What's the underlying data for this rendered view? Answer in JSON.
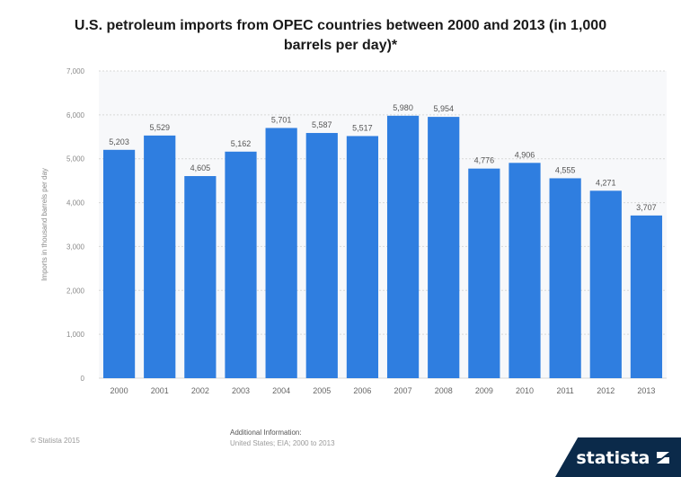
{
  "chart_data": {
    "type": "bar",
    "title_line1": "U.S. petroleum imports from OPEC countries between 2000 and 2013 (in 1,000",
    "title_line2": "barrels per day)*",
    "ylabel": "Imports in thousand barrels per day",
    "xlabel": "",
    "categories": [
      "2000",
      "2001",
      "2002",
      "2003",
      "2004",
      "2005",
      "2006",
      "2007",
      "2008",
      "2009",
      "2010",
      "2011",
      "2012",
      "2013"
    ],
    "values": [
      5203,
      5529,
      4605,
      5162,
      5701,
      5587,
      5517,
      5980,
      5954,
      4776,
      4906,
      4555,
      4271,
      3707
    ],
    "value_labels": [
      "5,203",
      "5,529",
      "4,605",
      "5,162",
      "5,701",
      "5,587",
      "5,517",
      "5,980",
      "5,954",
      "4,776",
      "4,906",
      "4,555",
      "4,271",
      "3,707"
    ],
    "yticks": [
      0,
      1000,
      2000,
      3000,
      4000,
      5000,
      6000,
      7000
    ],
    "ytick_labels": [
      "0",
      "1,000",
      "2,000",
      "3,000",
      "4,000",
      "5,000",
      "6,000",
      "7,000"
    ],
    "ylim": [
      0,
      7000
    ],
    "grid": true,
    "bar_color": "#2f7ee0",
    "bar_color_lower": "#3d86dd"
  },
  "footer": {
    "copyright": "© Statista 2015",
    "info_label": "Additional Information:",
    "info_source": "United States; EIA; 2000 to 2013"
  },
  "brand": {
    "name": "statista",
    "color": "#0b2a4a"
  }
}
